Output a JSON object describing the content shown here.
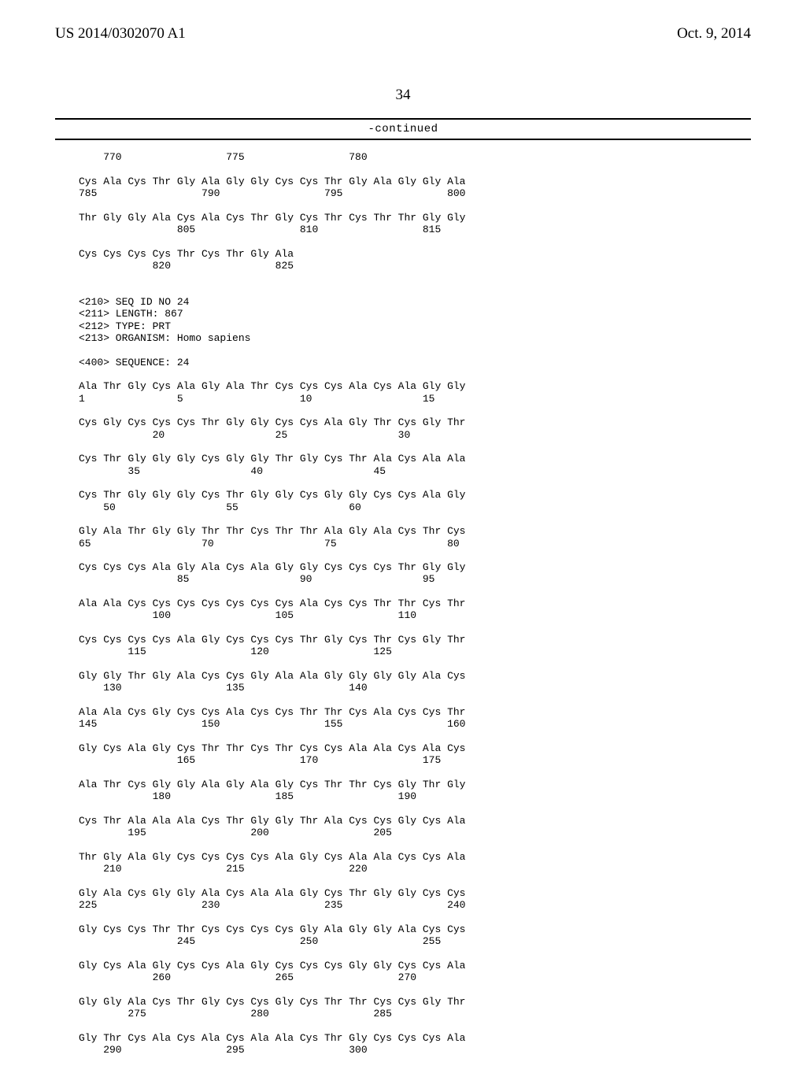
{
  "header": {
    "left": "US 2014/0302070 A1",
    "right": "Oct. 9, 2014"
  },
  "page_number": "34",
  "continued_label": "-continued",
  "seq_lines": [
    "    770                 775                 780",
    "",
    "Cys Ala Cys Thr Gly Ala Gly Gly Cys Cys Thr Gly Ala Gly Gly Ala",
    "785                 790                 795                 800",
    "",
    "Thr Gly Gly Ala Cys Ala Cys Thr Gly Cys Thr Cys Thr Thr Gly Gly",
    "                805                 810                 815",
    "",
    "Cys Cys Cys Cys Thr Cys Thr Gly Ala",
    "            820                 825",
    "",
    "",
    "<210> SEQ ID NO 24",
    "<211> LENGTH: 867",
    "<212> TYPE: PRT",
    "<213> ORGANISM: Homo sapiens",
    "",
    "<400> SEQUENCE: 24",
    "",
    "Ala Thr Gly Cys Ala Gly Ala Thr Cys Cys Cys Ala Cys Ala Gly Gly",
    "1               5                   10                  15",
    "",
    "Cys Gly Cys Cys Cys Thr Gly Gly Cys Cys Ala Gly Thr Cys Gly Thr",
    "            20                  25                  30",
    "",
    "Cys Thr Gly Gly Gly Cys Gly Gly Thr Gly Cys Thr Ala Cys Ala Ala",
    "        35                  40                  45",
    "",
    "Cys Thr Gly Gly Gly Cys Thr Gly Gly Cys Gly Gly Cys Cys Ala Gly",
    "    50                  55                  60",
    "",
    "Gly Ala Thr Gly Gly Thr Thr Cys Thr Thr Ala Gly Ala Cys Thr Cys",
    "65                  70                  75                  80",
    "",
    "Cys Cys Cys Ala Gly Ala Cys Ala Gly Gly Cys Cys Cys Thr Gly Gly",
    "                85                  90                  95",
    "",
    "Ala Ala Cys Cys Cys Cys Cys Cys Cys Ala Cys Cys Thr Thr Cys Thr",
    "            100                 105                 110",
    "",
    "Cys Cys Cys Cys Ala Gly Cys Cys Cys Thr Gly Cys Thr Cys Gly Thr",
    "        115                 120                 125",
    "",
    "Gly Gly Thr Gly Ala Cys Cys Gly Ala Ala Gly Gly Gly Gly Ala Cys",
    "    130                 135                 140",
    "",
    "Ala Ala Cys Gly Cys Cys Ala Cys Cys Thr Thr Cys Ala Cys Cys Thr",
    "145                 150                 155                 160",
    "",
    "Gly Cys Ala Gly Cys Thr Thr Cys Thr Cys Cys Ala Ala Cys Ala Cys",
    "                165                 170                 175",
    "",
    "Ala Thr Cys Gly Gly Ala Gly Ala Gly Cys Thr Thr Cys Gly Thr Gly",
    "            180                 185                 190",
    "",
    "Cys Thr Ala Ala Ala Cys Thr Gly Gly Thr Ala Cys Cys Gly Cys Ala",
    "        195                 200                 205",
    "",
    "Thr Gly Ala Gly Cys Cys Cys Cys Ala Gly Cys Ala Ala Cys Cys Ala",
    "    210                 215                 220",
    "",
    "Gly Ala Cys Gly Gly Ala Cys Ala Ala Gly Cys Thr Gly Gly Cys Cys",
    "225                 230                 235                 240",
    "",
    "Gly Cys Cys Thr Thr Cys Cys Cys Cys Gly Ala Gly Gly Ala Cys Cys",
    "                245                 250                 255",
    "",
    "Gly Cys Ala Gly Cys Cys Ala Gly Cys Cys Cys Gly Gly Cys Cys Ala",
    "            260                 265                 270",
    "",
    "Gly Gly Ala Cys Thr Gly Cys Cys Gly Cys Thr Thr Cys Cys Gly Thr",
    "        275                 280                 285",
    "",
    "Gly Thr Cys Ala Cys Ala Cys Ala Ala Cys Thr Gly Cys Cys Cys Ala",
    "    290                 295                 300"
  ]
}
